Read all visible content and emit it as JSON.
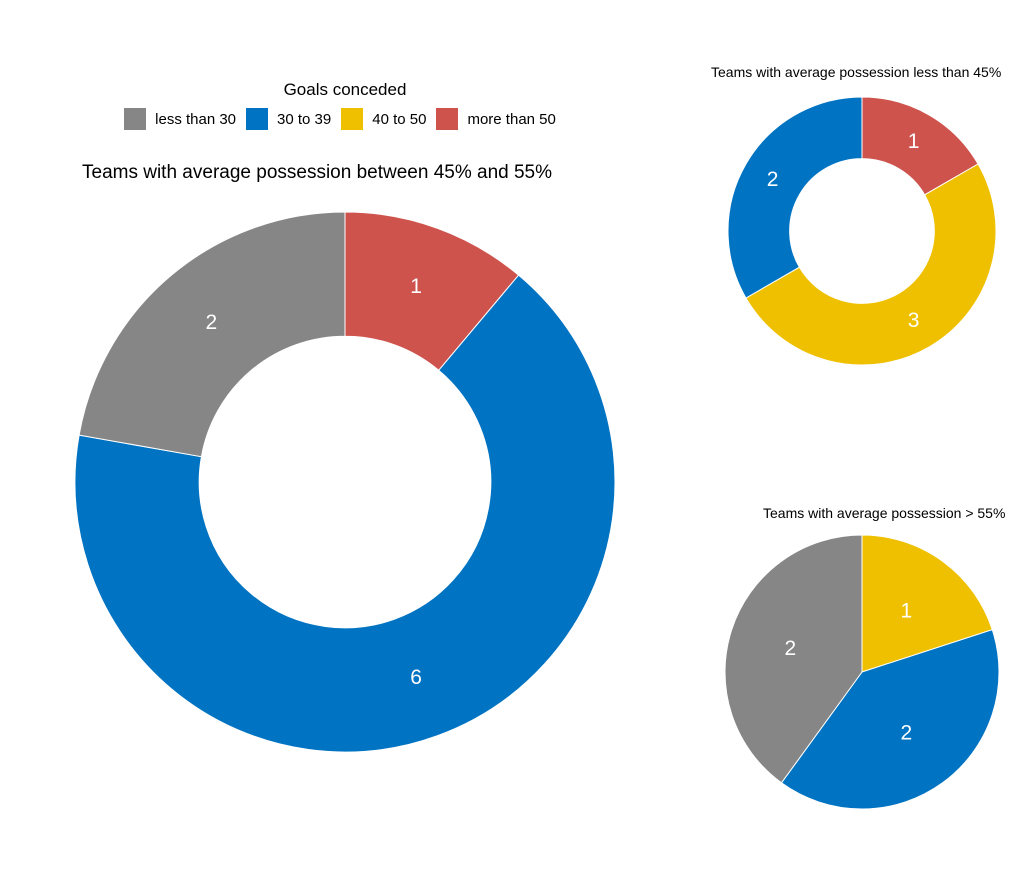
{
  "legend": {
    "title": "Goals conceded",
    "items": [
      {
        "label": "less than 30",
        "color": "#868686"
      },
      {
        "label": "30 to 39",
        "color": "#0073C2"
      },
      {
        "label": "40 to 50",
        "color": "#EFC000"
      },
      {
        "label": "more than 50",
        "color": "#CD534C"
      }
    ]
  },
  "chart_data": [
    {
      "type": "pie",
      "title": "Teams with average possession between 45% and 55%",
      "hole": true,
      "slices": [
        {
          "category": "more than 50",
          "value": 1,
          "color": "#CD534C"
        },
        {
          "category": "30 to 39",
          "value": 6,
          "color": "#0073C2"
        },
        {
          "category": "less than 30",
          "value": 2,
          "color": "#868686"
        }
      ]
    },
    {
      "type": "pie",
      "title": "Teams with average possession less than 45%",
      "hole": true,
      "slices": [
        {
          "category": "more than 50",
          "value": 1,
          "color": "#CD534C"
        },
        {
          "category": "40 to 50",
          "value": 3,
          "color": "#EFC000"
        },
        {
          "category": "30 to 39",
          "value": 2,
          "color": "#0073C2"
        }
      ]
    },
    {
      "type": "pie",
      "title": "Teams with average possession > 55%",
      "hole": false,
      "slices": [
        {
          "category": "40 to 50",
          "value": 1,
          "color": "#EFC000"
        },
        {
          "category": "30 to 39",
          "value": 2,
          "color": "#0073C2"
        },
        {
          "category": "less than 30",
          "value": 2,
          "color": "#868686"
        }
      ]
    }
  ]
}
